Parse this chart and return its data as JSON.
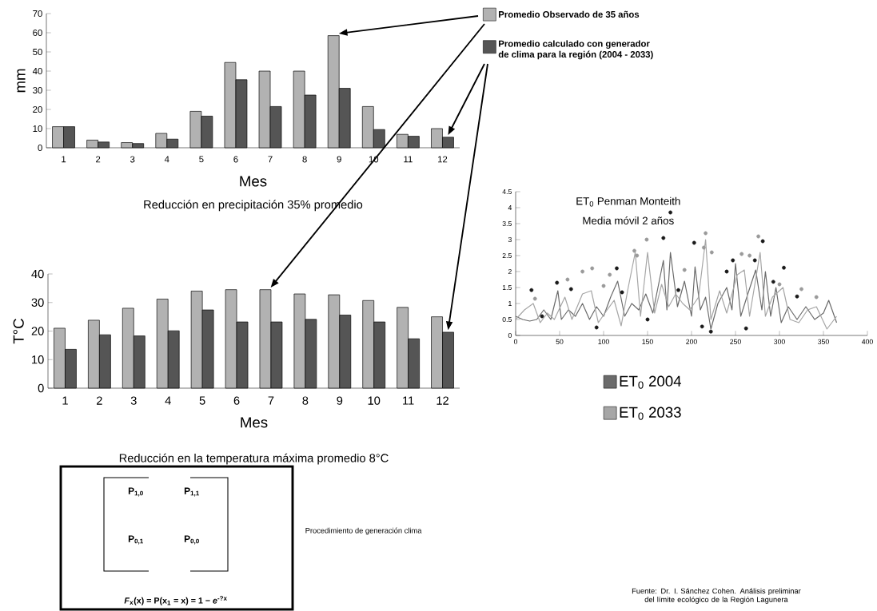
{
  "chart_data": [
    {
      "type": "bar",
      "categories": [
        "1",
        "2",
        "3",
        "4",
        "5",
        "6",
        "7",
        "8",
        "9",
        "10",
        "11",
        "12"
      ],
      "xlabel": "Mes",
      "ylabel": "mm",
      "ylim": [
        0,
        70
      ],
      "yticks": [
        0,
        10,
        20,
        30,
        40,
        50,
        60,
        70
      ],
      "legend": "right",
      "series": [
        {
          "name": "Promedio Observado de 35 años",
          "color": "#b2b2b2",
          "values": [
            11,
            4,
            2.7,
            7.5,
            19,
            44.5,
            40,
            40,
            58.5,
            21.5,
            7,
            10
          ]
        },
        {
          "name": "Promedio calculado con generador de clima para la región (2004 - 2033)",
          "color": "#555555",
          "values": [
            11,
            3,
            2.2,
            4.5,
            16.5,
            35.5,
            21.5,
            27.5,
            31,
            9.5,
            6,
            5.5
          ]
        }
      ],
      "annotations": [
        "Reducción en precipitación 35% promedio"
      ]
    },
    {
      "type": "bar",
      "categories": [
        "1",
        "2",
        "3",
        "4",
        "5",
        "6",
        "7",
        "8",
        "9",
        "10",
        "11",
        "12"
      ],
      "xlabel": "Mes",
      "ylabel": "T°C",
      "ylim": [
        0,
        40
      ],
      "yticks": [
        0,
        10,
        20,
        30,
        40
      ],
      "series": [
        {
          "color": "#b2b2b2",
          "values": [
            21,
            23.8,
            28,
            31.2,
            34,
            34.5,
            34.5,
            33,
            32.7,
            30.7,
            28.3,
            25
          ]
        },
        {
          "color": "#555555",
          "values": [
            13.6,
            18.7,
            18.3,
            20.1,
            27.4,
            23.2,
            23.2,
            24.1,
            25.6,
            23.2,
            17.3,
            19.6
          ]
        }
      ],
      "annotations": [
        "Reducción en la temperatura máxima promedio 8°C"
      ]
    },
    {
      "type": "line",
      "title": "ET$_{0}$ Penman Monteith",
      "subtitle": "Media móvil 2 años",
      "xlim": [
        0,
        400
      ],
      "xticks": [
        0,
        50,
        100,
        150,
        200,
        250,
        300,
        350,
        400
      ],
      "ylim": [
        0,
        4.5
      ],
      "yticks": [
        0,
        0.5,
        1,
        1.5,
        2,
        2.5,
        3,
        3.5,
        4,
        4.5
      ],
      "legend": "bottom",
      "series": [
        {
          "name": "ET$_{0}$ 2004",
          "color": "#6b6b6b",
          "x": [
            0,
            8,
            16,
            24,
            32,
            40,
            48,
            52,
            60,
            68,
            76,
            84,
            92,
            100,
            108,
            116,
            124,
            132,
            140,
            148,
            156,
            168,
            172,
            176,
            184,
            192,
            200,
            204,
            210,
            216,
            222,
            230,
            240,
            246,
            250,
            256,
            264,
            273,
            280,
            284,
            290,
            296,
            302,
            310,
            320,
            330,
            340,
            350,
            356,
            365
          ],
          "values": [
            0.6,
            0.5,
            0.45,
            0.5,
            0.8,
            0.5,
            1.4,
            0.5,
            0.8,
            0.6,
            1.0,
            0.5,
            0.9,
            0.6,
            1.2,
            1.7,
            0.6,
            1.0,
            0.8,
            1.3,
            0.7,
            2.35,
            0.8,
            2.6,
            0.9,
            1.7,
            0.6,
            2.15,
            0.8,
            1.2,
            0.2,
            1.0,
            1.5,
            0.8,
            2.25,
            0.6,
            1.3,
            2.05,
            0.8,
            2.0,
            0.6,
            1.5,
            0.4,
            0.9,
            0.5,
            0.9,
            0.5,
            0.7,
            1.1,
            0.4
          ]
        },
        {
          "name": "ET$_{0}$ 2033",
          "color": "#a6a6a6",
          "x": [
            0,
            10,
            20,
            28,
            36,
            44,
            56,
            64,
            76,
            86,
            94,
            104,
            112,
            120,
            128,
            136,
            142,
            150,
            158,
            166,
            174,
            182,
            190,
            198,
            208,
            216,
            222,
            232,
            240,
            252,
            260,
            266,
            278,
            284,
            292,
            304,
            312,
            322,
            332,
            342,
            354,
            365
          ],
          "values": [
            0.5,
            0.8,
            1.0,
            0.4,
            0.7,
            0.5,
            1.2,
            0.5,
            1.3,
            1.4,
            0.4,
            0.8,
            1.1,
            0.3,
            1.5,
            2.6,
            0.6,
            2.6,
            0.7,
            1.6,
            0.9,
            1.3,
            1.0,
            0.8,
            1.2,
            3.0,
            0.5,
            1.4,
            0.7,
            1.9,
            2.05,
            0.6,
            2.6,
            0.6,
            1.2,
            1.5,
            0.5,
            0.4,
            0.8,
            0.9,
            0.2,
            0.6
          ]
        },
        {
          "type": "scatter",
          "color": "#1a1a1a",
          "x": [
            18,
            30,
            47,
            63,
            92,
            115,
            121,
            150,
            168,
            176,
            185,
            203,
            212,
            222,
            240,
            247,
            262,
            272,
            281,
            293,
            305,
            320
          ],
          "values": [
            1.42,
            0.6,
            1.65,
            1.45,
            0.25,
            2.1,
            1.35,
            0.5,
            3.05,
            3.85,
            1.42,
            2.9,
            0.28,
            0.12,
            2.0,
            2.35,
            0.22,
            2.35,
            2.95,
            1.68,
            2.12,
            1.22
          ]
        },
        {
          "type": "scatter",
          "color": "#9a9a9a",
          "x": [
            22,
            59,
            76,
            87,
            100,
            107,
            135,
            138,
            149,
            192,
            214,
            216,
            223,
            257,
            266,
            276,
            300,
            325,
            342
          ],
          "values": [
            1.15,
            1.75,
            2.0,
            2.1,
            1.55,
            1.9,
            2.65,
            2.5,
            3.0,
            2.05,
            2.75,
            3.2,
            2.6,
            2.55,
            2.5,
            3.1,
            1.6,
            1.45,
            1.2
          ]
        }
      ]
    },
    {
      "type": "other",
      "annotations": [
        "P$_{1,0}$",
        "P$_{1,1}$",
        "P$_{0,1}$",
        "P$_{0,0}$",
        "*F*$_{x}$(x) = P(x$_{1}$ = x) = 1 − *e*$^{-?x}$",
        "Procedimiento de generación clima",
        "Fuente: Dr. I. Sánchez Cohen. Análisis preliminar del límite ecológico de la Región Lagunera"
      ]
    }
  ]
}
